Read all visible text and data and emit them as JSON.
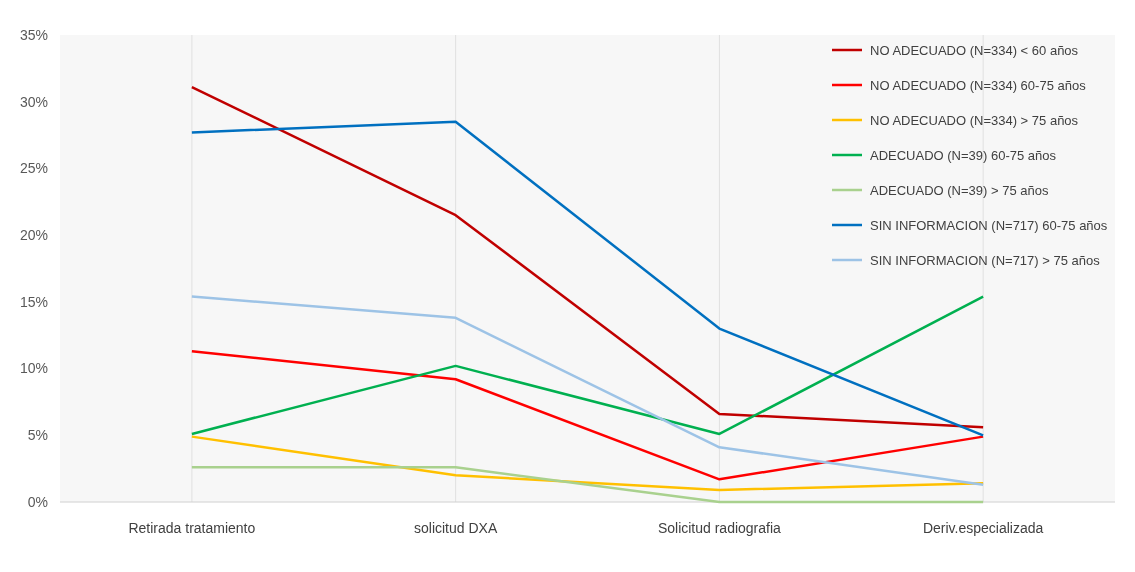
{
  "chart_data": {
    "type": "line",
    "categories": [
      "Retirada tratamiento",
      "solicitud DXA",
      "Solicitud radiografia",
      "Deriv.especializada"
    ],
    "series": [
      {
        "name": "NO ADECUADO (N=334) < 60 años",
        "color": "#c00000",
        "values": [
          31.1,
          21.5,
          6.6,
          5.6
        ]
      },
      {
        "name": "NO ADECUADO (N=334) 60-75 años",
        "color": "#ff0000",
        "values": [
          11.3,
          9.2,
          1.7,
          4.9
        ]
      },
      {
        "name": "NO ADECUADO (N=334) > 75 años",
        "color": "#ffc000",
        "values": [
          4.9,
          2.0,
          0.9,
          1.4
        ]
      },
      {
        "name": "ADECUADO (N=39) 60-75 años",
        "color": "#00b050",
        "values": [
          5.1,
          10.2,
          5.1,
          15.4
        ]
      },
      {
        "name": "ADECUADO (N=39) > 75 años",
        "color": "#a9d18e",
        "values": [
          2.6,
          2.6,
          0,
          0
        ]
      },
      {
        "name": "SIN INFORMACION  (N=717) 60-75 años",
        "color": "#0070c0",
        "values": [
          27.7,
          28.5,
          13.0,
          5.0
        ]
      },
      {
        "name": "SIN INFORMACION  (N=717) > 75 años",
        "color": "#9dc3e6",
        "values": [
          15.4,
          13.8,
          4.1,
          1.3
        ]
      }
    ],
    "ylim": [
      0,
      35
    ],
    "yticks": [
      {
        "value": 0,
        "label": "0%"
      },
      {
        "value": 5,
        "label": "5%"
      },
      {
        "value": 10,
        "label": "10%"
      },
      {
        "value": 15,
        "label": "15%"
      },
      {
        "value": 20,
        "label": "20%"
      },
      {
        "value": 25,
        "label": "25%"
      },
      {
        "value": 30,
        "label": "30%"
      },
      {
        "value": 35,
        "label": "35%"
      }
    ],
    "grid": "x",
    "legend": "top right",
    "marker": "none",
    "line_style": "solid"
  }
}
